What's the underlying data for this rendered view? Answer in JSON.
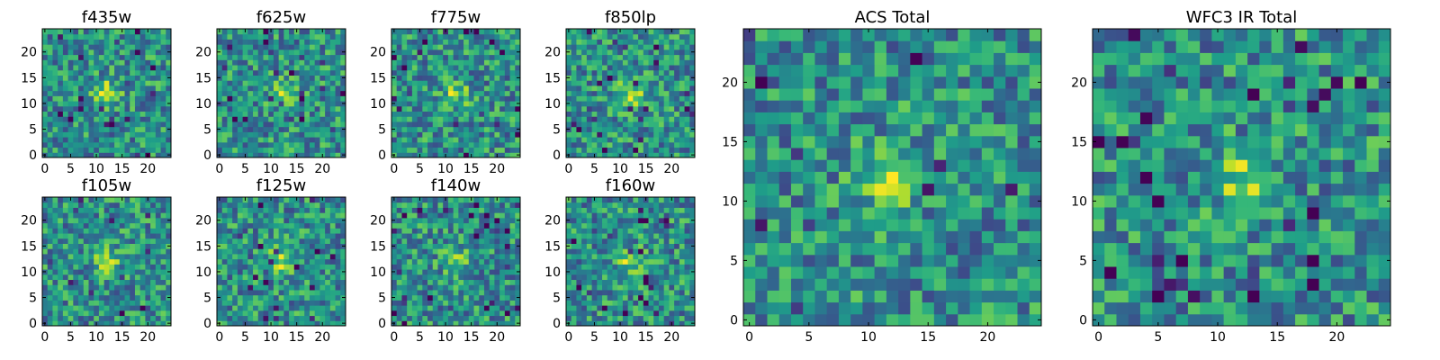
{
  "chart_data": [
    {
      "type": "heatmap",
      "title": "f435w",
      "grid_size": 25,
      "xlim": [
        0,
        24
      ],
      "ylim": [
        0,
        24
      ],
      "xticks": [
        0,
        5,
        10,
        15,
        20
      ],
      "yticks": [
        0,
        5,
        10,
        15,
        20
      ],
      "colormap": "viridis",
      "grid": false,
      "peak_pixel": [
        12,
        12
      ],
      "seed": 101
    },
    {
      "type": "heatmap",
      "title": "f625w",
      "grid_size": 25,
      "xlim": [
        0,
        24
      ],
      "ylim": [
        0,
        24
      ],
      "xticks": [
        0,
        5,
        10,
        15,
        20
      ],
      "yticks": [
        0,
        5,
        10,
        15,
        20
      ],
      "colormap": "viridis",
      "grid": false,
      "peak_pixel": [
        12,
        12
      ],
      "seed": 202
    },
    {
      "type": "heatmap",
      "title": "f775w",
      "grid_size": 25,
      "xlim": [
        0,
        24
      ],
      "ylim": [
        0,
        24
      ],
      "xticks": [
        0,
        5,
        10,
        15,
        20
      ],
      "yticks": [
        0,
        5,
        10,
        15,
        20
      ],
      "colormap": "viridis",
      "grid": false,
      "peak_pixel": [
        12,
        12
      ],
      "seed": 303
    },
    {
      "type": "heatmap",
      "title": "f850lp",
      "grid_size": 25,
      "xlim": [
        0,
        24
      ],
      "ylim": [
        0,
        24
      ],
      "xticks": [
        0,
        5,
        10,
        15,
        20
      ],
      "yticks": [
        0,
        5,
        10,
        15,
        20
      ],
      "colormap": "viridis",
      "grid": false,
      "peak_pixel": [
        12,
        12
      ],
      "seed": 404
    },
    {
      "type": "heatmap",
      "title": "f105w",
      "grid_size": 25,
      "xlim": [
        0,
        24
      ],
      "ylim": [
        0,
        24
      ],
      "xticks": [
        0,
        5,
        10,
        15,
        20
      ],
      "yticks": [
        0,
        5,
        10,
        15,
        20
      ],
      "colormap": "viridis",
      "grid": false,
      "peak_pixel": [
        12,
        12
      ],
      "seed": 505
    },
    {
      "type": "heatmap",
      "title": "f125w",
      "grid_size": 25,
      "xlim": [
        0,
        24
      ],
      "ylim": [
        0,
        24
      ],
      "xticks": [
        0,
        5,
        10,
        15,
        20
      ],
      "yticks": [
        0,
        5,
        10,
        15,
        20
      ],
      "colormap": "viridis",
      "grid": false,
      "peak_pixel": [
        12,
        12
      ],
      "seed": 606
    },
    {
      "type": "heatmap",
      "title": "f140w",
      "grid_size": 25,
      "xlim": [
        0,
        24
      ],
      "ylim": [
        0,
        24
      ],
      "xticks": [
        0,
        5,
        10,
        15,
        20
      ],
      "yticks": [
        0,
        5,
        10,
        15,
        20
      ],
      "colormap": "viridis",
      "grid": false,
      "peak_pixel": [
        12,
        12
      ],
      "seed": 707
    },
    {
      "type": "heatmap",
      "title": "f160w",
      "grid_size": 25,
      "xlim": [
        0,
        24
      ],
      "ylim": [
        0,
        24
      ],
      "xticks": [
        0,
        5,
        10,
        15,
        20
      ],
      "yticks": [
        0,
        5,
        10,
        15,
        20
      ],
      "colormap": "viridis",
      "grid": false,
      "peak_pixel": [
        12,
        12
      ],
      "seed": 808
    },
    {
      "type": "heatmap",
      "title": "ACS Total",
      "grid_size": 25,
      "xlim": [
        0,
        24
      ],
      "ylim": [
        0,
        24
      ],
      "xticks": [
        0,
        5,
        10,
        15,
        20
      ],
      "yticks": [
        0,
        5,
        10,
        15,
        20
      ],
      "colormap": "viridis",
      "grid": false,
      "peak_pixel": [
        12,
        12
      ],
      "seed": 909
    },
    {
      "type": "heatmap",
      "title": "WFC3 IR Total",
      "grid_size": 25,
      "xlim": [
        0,
        24
      ],
      "ylim": [
        0,
        24
      ],
      "xticks": [
        0,
        5,
        10,
        15,
        20
      ],
      "yticks": [
        0,
        5,
        10,
        15,
        20
      ],
      "colormap": "viridis",
      "grid": false,
      "peak_pixel": [
        12,
        12
      ],
      "seed": 1010
    }
  ]
}
